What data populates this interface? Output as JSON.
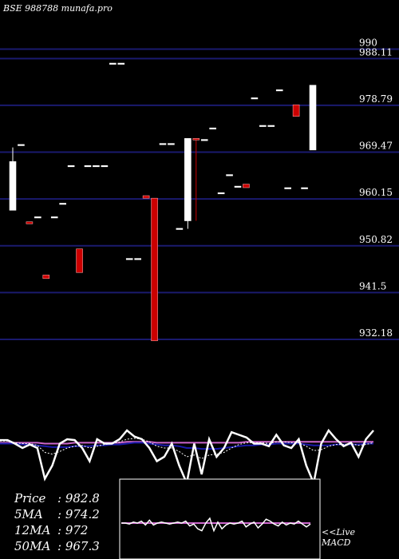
{
  "watermark": "BSE 988788 munafa.pro",
  "stats": [
    {
      "label": "Price",
      "value": ": 982.8"
    },
    {
      "label": "5MA",
      "value": ": 974.2"
    },
    {
      "label": "12MA",
      "value": ": 972"
    },
    {
      "label": "50MA",
      "value": ": 967.3"
    }
  ],
  "live_label": "<<Live",
  "macd_label": "MACD",
  "colors": {
    "background": "#000000",
    "gridline": "#1a1a6e",
    "bull": "#ffffff",
    "bear": "#cc0000",
    "ma_long": "#cc66cc",
    "ma_mid": "#1a1aaa",
    "price_line": "#ffffff"
  },
  "chart_data": [
    {
      "type": "candlestick",
      "ylim": [
        929.0,
        995.0
      ],
      "y_ticks": [
        {
          "value": 990,
          "label": "990"
        },
        {
          "value": 988.11,
          "label": "988.11"
        },
        {
          "value": 978.79,
          "label": "978.79"
        },
        {
          "value": 969.47,
          "label": "969.47"
        },
        {
          "value": 960.15,
          "label": "960.15"
        },
        {
          "value": 950.82,
          "label": "950.82"
        },
        {
          "value": 941.5,
          "label": "941.5"
        },
        {
          "value": 932.18,
          "label": "932.18"
        }
      ],
      "candles": [
        {
          "o": 957.9,
          "h": 970.4,
          "l": 957.9,
          "c": 967.6,
          "d": "up"
        },
        {
          "o": 971.0,
          "h": 971.0,
          "l": 971.0,
          "c": 971.0,
          "d": "up"
        },
        {
          "o": 955.6,
          "h": 955.6,
          "l": 955.2,
          "c": 955.2,
          "d": "down"
        },
        {
          "o": 956.6,
          "h": 956.6,
          "l": 956.6,
          "c": 956.6,
          "d": "up"
        },
        {
          "o": 945.0,
          "h": 945.0,
          "l": 944.3,
          "c": 944.3,
          "d": "down"
        },
        {
          "o": 956.6,
          "h": 956.6,
          "l": 956.6,
          "c": 956.6,
          "d": "up"
        },
        {
          "o": 959.3,
          "h": 959.3,
          "l": 959.3,
          "c": 959.3,
          "d": "up"
        },
        {
          "o": 966.8,
          "h": 966.8,
          "l": 966.8,
          "c": 966.8,
          "d": "up"
        },
        {
          "o": 950.2,
          "h": 950.2,
          "l": 945.5,
          "c": 945.5,
          "d": "down"
        },
        {
          "o": 966.8,
          "h": 966.8,
          "l": 966.8,
          "c": 966.8,
          "d": "up"
        },
        {
          "o": 966.8,
          "h": 966.8,
          "l": 966.8,
          "c": 966.8,
          "d": "up"
        },
        {
          "o": 966.8,
          "h": 966.8,
          "l": 966.8,
          "c": 966.8,
          "d": "up"
        },
        {
          "o": 987.2,
          "h": 987.2,
          "l": 987.2,
          "c": 987.2,
          "d": "up"
        },
        {
          "o": 987.2,
          "h": 987.2,
          "l": 987.2,
          "c": 987.2,
          "d": "up"
        },
        {
          "o": 948.3,
          "h": 948.3,
          "l": 948.3,
          "c": 948.3,
          "d": "up"
        },
        {
          "o": 948.3,
          "h": 948.3,
          "l": 948.3,
          "c": 948.3,
          "d": "up"
        },
        {
          "o": 960.8,
          "h": 960.8,
          "l": 960.3,
          "c": 960.3,
          "d": "down"
        },
        {
          "o": 960.3,
          "h": 960.3,
          "l": 931.9,
          "c": 931.9,
          "d": "down"
        },
        {
          "o": 971.2,
          "h": 971.2,
          "l": 971.2,
          "c": 971.2,
          "d": "up"
        },
        {
          "o": 971.2,
          "h": 971.2,
          "l": 971.2,
          "c": 971.2,
          "d": "up"
        },
        {
          "o": 954.3,
          "h": 954.3,
          "l": 954.3,
          "c": 954.3,
          "d": "up"
        },
        {
          "o": 955.8,
          "h": 972.2,
          "l": 954.2,
          "c": 972.2,
          "d": "up"
        },
        {
          "o": 972.2,
          "h": 972.2,
          "l": 955.8,
          "c": 971.9,
          "d": "down"
        },
        {
          "o": 972.0,
          "h": 972.0,
          "l": 972.0,
          "c": 972.0,
          "d": "up"
        },
        {
          "o": 974.3,
          "h": 974.3,
          "l": 974.3,
          "c": 974.3,
          "d": "up"
        },
        {
          "o": 961.4,
          "h": 961.4,
          "l": 961.4,
          "c": 961.4,
          "d": "up"
        },
        {
          "o": 965.0,
          "h": 965.0,
          "l": 965.0,
          "c": 965.0,
          "d": "up"
        },
        {
          "o": 962.7,
          "h": 962.7,
          "l": 962.7,
          "c": 962.7,
          "d": "up"
        },
        {
          "o": 963.1,
          "h": 963.1,
          "l": 962.4,
          "c": 962.4,
          "d": "down"
        },
        {
          "o": 980.3,
          "h": 980.3,
          "l": 980.3,
          "c": 980.3,
          "d": "up"
        },
        {
          "o": 974.8,
          "h": 974.8,
          "l": 974.8,
          "c": 974.8,
          "d": "up"
        },
        {
          "o": 974.8,
          "h": 974.8,
          "l": 974.8,
          "c": 974.8,
          "d": "up"
        },
        {
          "o": 981.9,
          "h": 981.9,
          "l": 981.9,
          "c": 981.9,
          "d": "up"
        },
        {
          "o": 962.4,
          "h": 962.4,
          "l": 962.4,
          "c": 962.4,
          "d": "up"
        },
        {
          "o": 978.9,
          "h": 978.9,
          "l": 976.6,
          "c": 976.6,
          "d": "down"
        },
        {
          "o": 962.4,
          "h": 962.4,
          "l": 962.4,
          "c": 962.4,
          "d": "up"
        },
        {
          "o": 969.9,
          "h": 982.8,
          "l": 969.9,
          "c": 982.8,
          "d": "up"
        }
      ]
    },
    {
      "type": "line",
      "name": "momentum indicator",
      "ylim": [
        0,
        100
      ],
      "series": [
        {
          "color": "#ffffff",
          "values": [
            49,
            49,
            45,
            40,
            44,
            40,
            5,
            20,
            45,
            50,
            49,
            40,
            25,
            50,
            45,
            45,
            50,
            60,
            53,
            50,
            40,
            25,
            30,
            45,
            20,
            0,
            45,
            10,
            50,
            30,
            40,
            58,
            55,
            52,
            45,
            45,
            42,
            55,
            43,
            40,
            50,
            20,
            0,
            45,
            60,
            50,
            42,
            46,
            30,
            50,
            60
          ]
        },
        {
          "color": "#ffffff",
          "dashed": true,
          "values": [
            48,
            48,
            46,
            45,
            45,
            43,
            35,
            33,
            36,
            40,
            42,
            43,
            40,
            42,
            44,
            45,
            47,
            50,
            51,
            50,
            47,
            42,
            40,
            40,
            36,
            30,
            32,
            28,
            32,
            33,
            35,
            40,
            44,
            46,
            46,
            46,
            45,
            47,
            47,
            46,
            46,
            42,
            37,
            38,
            42,
            44,
            44,
            45,
            43,
            44,
            46
          ]
        },
        {
          "color": "#1a1aaa",
          "values": [
            45,
            45,
            45,
            44,
            44,
            43,
            42,
            41,
            41,
            41,
            42,
            42,
            42,
            43,
            43,
            44,
            44,
            45,
            46,
            46,
            45,
            44,
            43,
            43,
            42,
            40,
            40,
            39,
            39,
            39,
            40,
            41,
            42,
            43,
            43,
            44,
            44,
            45,
            45,
            45,
            45,
            44,
            43,
            43,
            43,
            44,
            44,
            44,
            44,
            45,
            45
          ]
        },
        {
          "color": "#cc66cc",
          "values": [
            46,
            46,
            46,
            46,
            46,
            46,
            45,
            45,
            45,
            45,
            46,
            46,
            46,
            46,
            46,
            46,
            46,
            47,
            47,
            47,
            47,
            46,
            46,
            46,
            46,
            46,
            46,
            46,
            46,
            46,
            46,
            46,
            46,
            47,
            47,
            47,
            47,
            47,
            47,
            47,
            47,
            47,
            47,
            47,
            47,
            47,
            47,
            47,
            47,
            47,
            47
          ]
        }
      ]
    },
    {
      "type": "line",
      "name": "MACD",
      "series": [
        {
          "color": "#cc66cc",
          "values": [
            50,
            50,
            50,
            50,
            50,
            50,
            50,
            50,
            50,
            50,
            50,
            50,
            50,
            50,
            50,
            50,
            50,
            50,
            50,
            50,
            50,
            50,
            50,
            50,
            50,
            50,
            50,
            50,
            50,
            50,
            50,
            50,
            50,
            50,
            50,
            50,
            50,
            50,
            50,
            50,
            50,
            50,
            50,
            50,
            50,
            50,
            50,
            50
          ]
        },
        {
          "color": "#ffffff",
          "values": [
            50,
            50,
            49,
            51,
            50,
            52,
            48,
            53,
            48,
            50,
            51,
            50,
            49,
            50,
            51,
            50,
            52,
            47,
            49,
            44,
            42,
            50,
            55,
            42,
            51,
            44,
            48,
            50,
            49,
            50,
            52,
            46,
            49,
            51,
            45,
            49,
            54,
            52,
            49,
            47,
            51,
            48,
            50,
            49,
            52,
            49,
            46,
            49
          ]
        }
      ]
    }
  ]
}
